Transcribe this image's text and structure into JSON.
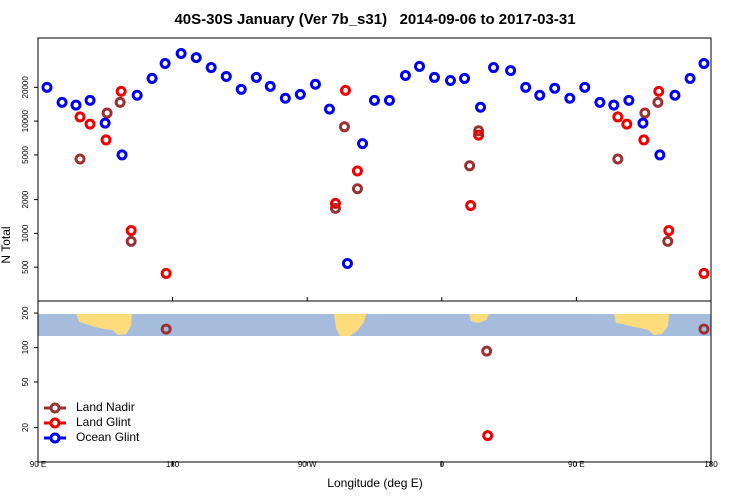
{
  "chart_data": [
    {
      "type": "scatter",
      "title": "40S-30S January (Ver 7b_s31)   2014-09-06 to 2017-03-31",
      "ylabel": "N Total",
      "log_y": true,
      "xlim": [
        90,
        540
      ],
      "ylim": [
        250,
        55000
      ],
      "yticks": [
        500,
        1000,
        2000,
        5000,
        10000,
        20000
      ],
      "series": [
        {
          "name": "Land Nadir",
          "color": "#993333",
          "x": [
            118.1,
            136.2,
            144.9,
            152.3,
            288.9,
            294.9,
            303.6,
            378.6,
            384.6,
            477.7,
            495.8,
            504.5,
            511.1
          ],
          "values": [
            4600,
            11800,
            14700,
            850,
            1670,
            8900,
            2500,
            4000,
            8200,
            4600,
            11800,
            14700,
            850
          ]
        },
        {
          "name": "Land Glint",
          "color": "#ee0000",
          "x": [
            118.1,
            124.8,
            135.5,
            145.6,
            152.3,
            175.7,
            288.9,
            295.6,
            303.6,
            379.3,
            384.6,
            477.7,
            483.7,
            495.1,
            505.1,
            511.8,
            535.3
          ],
          "values": [
            10900,
            9400,
            6800,
            18400,
            1060,
            440,
            1850,
            18800,
            3600,
            1770,
            7500,
            10900,
            9400,
            6800,
            18400,
            1060,
            440
          ]
        },
        {
          "name": "Ocean Glint",
          "color": "#0000ee",
          "x": [
            96.0,
            106.1,
            115.4,
            124.8,
            134.9,
            146.2,
            156.3,
            166.3,
            175.0,
            185.7,
            195.8,
            205.8,
            215.9,
            225.9,
            236.0,
            245.3,
            255.4,
            265.4,
            275.5,
            284.9,
            296.9,
            307.0,
            315.0,
            325.0,
            335.7,
            345.1,
            355.1,
            365.8,
            375.2,
            385.9,
            394.6,
            406.0,
            416.1,
            425.5,
            435.5,
            445.6,
            455.6,
            465.7,
            475.0,
            485.1,
            494.5,
            505.8,
            515.9,
            526.0,
            535.3
          ],
          "values": [
            20000,
            14700,
            13900,
            15300,
            9600,
            5000,
            17000,
            24000,
            32600,
            40000,
            36800,
            30000,
            25000,
            19200,
            24500,
            20400,
            16000,
            17300,
            21300,
            12800,
            540,
            6300,
            15300,
            15300,
            25500,
            30700,
            24500,
            23000,
            24000,
            13300,
            30000,
            28200,
            20000,
            17000,
            19600,
            16000,
            20000,
            14700,
            13900,
            15300,
            9600,
            5000,
            17000,
            24000,
            32600
          ]
        }
      ]
    },
    {
      "type": "scatter",
      "xlabel": "Longitude (deg E)",
      "log_y": true,
      "legend": "lower left",
      "xlim": [
        90,
        540
      ],
      "ylim": [
        10,
        255
      ],
      "yticks": [
        20,
        50,
        100,
        200
      ],
      "xticks": [
        {
          "value": 90,
          "label": "90 E"
        },
        {
          "value": 180,
          "label": "180"
        },
        {
          "value": 270,
          "label": "90 W"
        },
        {
          "value": 360,
          "label": "0"
        },
        {
          "value": 450,
          "label": "90 E"
        },
        {
          "value": 540,
          "label": "180"
        }
      ],
      "series": [
        {
          "color": "#993333",
          "x": [
            175.7,
            390.0,
            535.3
          ],
          "values": [
            145,
            93,
            145
          ]
        },
        {
          "color": "#ee0000",
          "x": [
            390.7
          ],
          "values": [
            17
          ]
        },
        {
          "color": "#0000ee",
          "x": [],
          "values": []
        }
      ]
    }
  ]
}
